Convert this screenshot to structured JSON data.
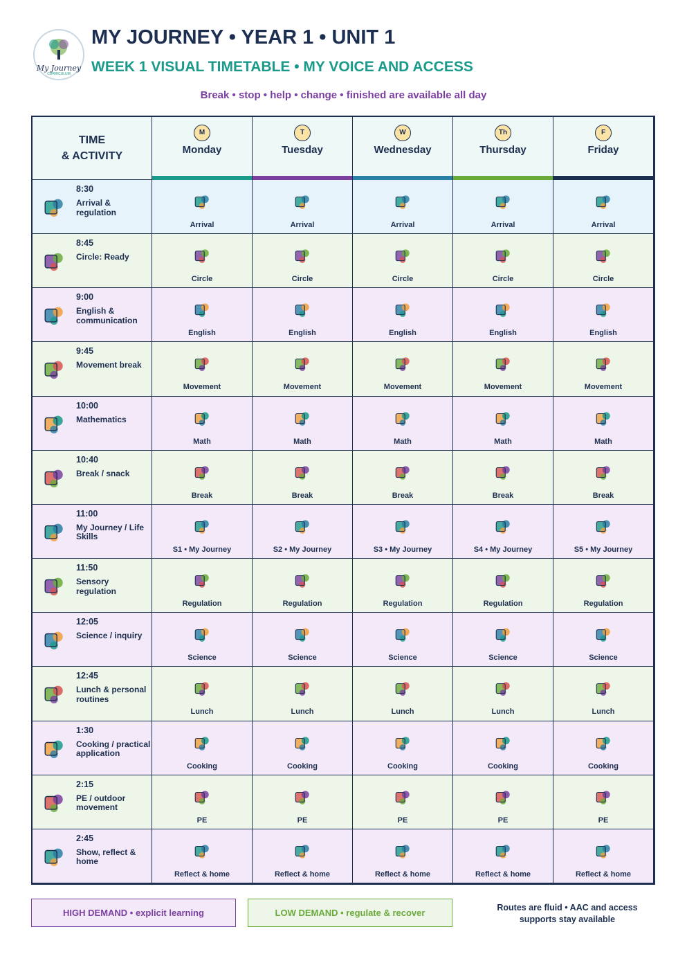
{
  "header": {
    "logo_text": "My Journey",
    "logo_sub": "CURRICULUM",
    "title": "MY JOURNEY • YEAR 1 • UNIT 1",
    "subtitle": "WEEK 1 VISUAL TIMETABLE • MY VOICE AND ACCESS",
    "note": "Break • stop • help • change • finished are available all day"
  },
  "table": {
    "corner": [
      "TIME",
      "& ACTIVITY"
    ],
    "days": [
      {
        "badge": "M",
        "name": "Monday",
        "color": "#1a9a8a"
      },
      {
        "badge": "T",
        "name": "Tuesday",
        "color": "#7b3fa0"
      },
      {
        "badge": "W",
        "name": "Wednesday",
        "color": "#2a7fa5"
      },
      {
        "badge": "Th",
        "name": "Thursday",
        "color": "#6aaa3a"
      },
      {
        "badge": "F",
        "name": "Friday",
        "color": "#1d2f50"
      }
    ],
    "rows": [
      {
        "time": "8:30",
        "activity": "Arrival & regulation",
        "demand": "arrival",
        "cells": [
          "Arrival",
          "Arrival",
          "Arrival",
          "Arrival",
          "Arrival"
        ]
      },
      {
        "time": "8:45",
        "activity": "Circle: Ready",
        "demand": "low",
        "cells": [
          "Circle",
          "Circle",
          "Circle",
          "Circle",
          "Circle"
        ]
      },
      {
        "time": "9:00",
        "activity": "English & communication",
        "demand": "high",
        "cells": [
          "English",
          "English",
          "English",
          "English",
          "English"
        ]
      },
      {
        "time": "9:45",
        "activity": "Movement break",
        "demand": "low",
        "cells": [
          "Movement",
          "Movement",
          "Movement",
          "Movement",
          "Movement"
        ]
      },
      {
        "time": "10:00",
        "activity": "Mathematics",
        "demand": "high",
        "cells": [
          "Math",
          "Math",
          "Math",
          "Math",
          "Math"
        ]
      },
      {
        "time": "10:40",
        "activity": "Break / snack",
        "demand": "low",
        "cells": [
          "Break",
          "Break",
          "Break",
          "Break",
          "Break"
        ]
      },
      {
        "time": "11:00",
        "activity": "My Journey / Life Skills",
        "demand": "high",
        "cells": [
          "S1 • My Journey",
          "S2 • My Journey",
          "S3 • My Journey",
          "S4 • My Journey",
          "S5 • My Journey"
        ]
      },
      {
        "time": "11:50",
        "activity": "Sensory regulation",
        "demand": "low",
        "cells": [
          "Regulation",
          "Regulation",
          "Regulation",
          "Regulation",
          "Regulation"
        ]
      },
      {
        "time": "12:05",
        "activity": "Science / inquiry",
        "demand": "high",
        "cells": [
          "Science",
          "Science",
          "Science",
          "Science",
          "Science"
        ]
      },
      {
        "time": "12:45",
        "activity": "Lunch & personal routines",
        "demand": "low",
        "cells": [
          "Lunch",
          "Lunch",
          "Lunch",
          "Lunch",
          "Lunch"
        ]
      },
      {
        "time": "1:30",
        "activity": "Cooking / practical application",
        "demand": "high",
        "cells": [
          "Cooking",
          "Cooking",
          "Cooking",
          "Cooking",
          "Cooking"
        ]
      },
      {
        "time": "2:15",
        "activity": "PE / outdoor movement",
        "demand": "low",
        "cells": [
          "PE",
          "PE",
          "PE",
          "PE",
          "PE"
        ]
      },
      {
        "time": "2:45",
        "activity": "Show, reflect & home",
        "demand": "high",
        "cells": [
          "Reflect & home",
          "Reflect & home",
          "Reflect & home",
          "Reflect & home",
          "Reflect & home"
        ]
      }
    ]
  },
  "legend": {
    "high": "HIGH DEMAND • explicit learning",
    "low": "LOW DEMAND • regulate & recover",
    "note": "Routes are fluid • AAC and access supports stay available"
  }
}
